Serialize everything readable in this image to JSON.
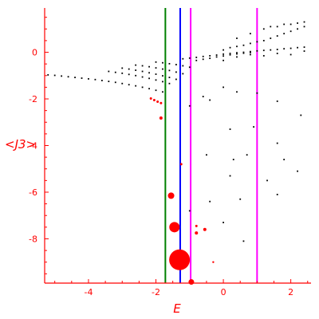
{
  "chart_data": {
    "type": "scatter",
    "title": "",
    "xlabel": "E",
    "ylabel": "<J3>",
    "xlim": [
      -5.3,
      2.6
    ],
    "ylim": [
      -9.9,
      1.9
    ],
    "xticks": [
      -4,
      -2,
      0,
      2
    ],
    "yticks": [
      0,
      -2,
      -4,
      -6,
      -8
    ],
    "grid": false,
    "colors": {
      "axis": "#ff0000",
      "points": "#000000",
      "highlight": "#ff0000"
    },
    "vertical_lines": [
      {
        "x": -1.72,
        "color": "#008000"
      },
      {
        "x": -1.28,
        "color": "#0000ff"
      },
      {
        "x": -0.97,
        "color": "#ff00ff"
      },
      {
        "x": 1.0,
        "color": "#ff00ff"
      }
    ],
    "series": [
      {
        "points": [
          [
            -5.2,
            -0.97
          ],
          [
            -5.0,
            -0.99
          ],
          [
            -4.8,
            -1.02
          ],
          [
            -4.6,
            -1.05
          ],
          [
            -4.4,
            -1.08
          ],
          [
            -4.2,
            -1.11
          ],
          [
            -4.0,
            -1.14
          ],
          [
            -3.8,
            -1.17
          ],
          [
            -3.6,
            -1.21
          ],
          [
            -3.4,
            -1.25
          ],
          [
            -3.2,
            -1.29
          ],
          [
            -3.0,
            -1.34
          ],
          [
            -2.8,
            -1.39
          ],
          [
            -2.6,
            -1.44
          ],
          [
            -2.4,
            -1.5
          ],
          [
            -2.2,
            -1.56
          ],
          [
            -2.0,
            -1.63
          ],
          [
            -1.8,
            -1.7
          ],
          [
            -3.4,
            -0.82
          ],
          [
            -3.2,
            -0.86
          ],
          [
            -3.0,
            -0.9
          ],
          [
            -2.8,
            -0.95
          ],
          [
            -2.6,
            -1.0
          ],
          [
            -2.4,
            -1.06
          ],
          [
            -2.2,
            -1.12
          ],
          [
            -2.0,
            -1.19
          ],
          [
            -1.8,
            -1.26
          ],
          [
            -1.6,
            -1.34
          ],
          [
            -3.0,
            -0.68
          ],
          [
            -2.8,
            -0.72
          ],
          [
            -2.6,
            -0.77
          ],
          [
            -2.4,
            -0.82
          ],
          [
            -2.2,
            -0.88
          ],
          [
            -2.0,
            -0.94
          ],
          [
            -1.8,
            -1.01
          ],
          [
            -1.6,
            -1.08
          ],
          [
            -1.4,
            -1.16
          ],
          [
            -2.6,
            -0.55
          ],
          [
            -2.4,
            -0.58
          ],
          [
            -2.2,
            -0.62
          ],
          [
            -2.0,
            -0.67
          ],
          [
            -1.8,
            -0.72
          ],
          [
            -1.6,
            -0.78
          ],
          [
            -1.4,
            -0.85
          ],
          [
            -1.2,
            -0.92
          ],
          [
            -2.0,
            -0.42
          ],
          [
            -1.8,
            -0.45
          ],
          [
            -1.6,
            -0.49
          ],
          [
            -1.4,
            -0.53
          ],
          [
            -1.2,
            -0.58
          ],
          [
            -1.0,
            -0.64
          ],
          [
            -1.2,
            -0.28
          ],
          [
            -1.0,
            -0.25
          ],
          [
            -0.8,
            -0.22
          ],
          [
            -0.6,
            -0.18
          ],
          [
            -0.4,
            -0.15
          ],
          [
            -0.2,
            -0.12
          ],
          [
            0.0,
            -0.08
          ],
          [
            0.2,
            -0.05
          ],
          [
            0.4,
            -0.02
          ],
          [
            0.6,
            0.0
          ],
          [
            0.8,
            0.03
          ],
          [
            1.0,
            0.06
          ],
          [
            1.2,
            0.08
          ],
          [
            1.4,
            0.1
          ],
          [
            1.6,
            0.12
          ],
          [
            1.8,
            0.15
          ],
          [
            2.0,
            0.17
          ],
          [
            2.2,
            0.2
          ],
          [
            2.4,
            0.22
          ],
          [
            -0.8,
            -0.35
          ],
          [
            -0.6,
            -0.3
          ],
          [
            -0.4,
            -0.26
          ],
          [
            -0.2,
            -0.2
          ],
          [
            0.0,
            -0.16
          ],
          [
            0.2,
            -0.11
          ],
          [
            0.4,
            -0.07
          ],
          [
            0.6,
            -0.04
          ],
          [
            0.8,
            -0.01
          ],
          [
            0.0,
            0.1
          ],
          [
            0.2,
            0.2
          ],
          [
            0.4,
            0.25
          ],
          [
            0.6,
            0.3
          ],
          [
            0.8,
            0.38
          ],
          [
            1.0,
            0.45
          ],
          [
            1.2,
            0.5
          ],
          [
            1.4,
            0.6
          ],
          [
            1.6,
            0.7
          ],
          [
            1.8,
            0.8
          ],
          [
            2.0,
            0.9
          ],
          [
            2.2,
            1.0
          ],
          [
            2.4,
            1.1
          ],
          [
            0.4,
            0.6
          ],
          [
            0.8,
            0.8
          ],
          [
            1.2,
            1.0
          ],
          [
            1.6,
            1.1
          ],
          [
            2.0,
            1.2
          ],
          [
            2.4,
            1.3
          ],
          [
            1.4,
            1.1
          ],
          [
            1.8,
            1.2
          ],
          [
            2.2,
            1.25
          ],
          [
            0.0,
            -0.35
          ],
          [
            0.4,
            -0.2
          ],
          [
            0.8,
            -0.1
          ],
          [
            1.2,
            -0.15
          ],
          [
            1.6,
            -0.05
          ],
          [
            2.0,
            -0.1
          ],
          [
            2.4,
            0.05
          ],
          [
            -0.4,
            -2.05
          ],
          [
            -0.6,
            -1.9
          ],
          [
            0.0,
            -1.5
          ],
          [
            0.4,
            -1.7
          ],
          [
            1.0,
            -1.75
          ],
          [
            1.6,
            -2.1
          ],
          [
            2.3,
            -2.7
          ],
          [
            -1.0,
            -2.3
          ],
          [
            0.2,
            -3.3
          ],
          [
            0.9,
            -3.2
          ],
          [
            1.6,
            -3.9
          ],
          [
            0.7,
            -4.4
          ],
          [
            1.8,
            -4.6
          ],
          [
            0.2,
            -5.3
          ],
          [
            -0.5,
            -4.4
          ],
          [
            0.3,
            -4.6
          ],
          [
            1.3,
            -5.5
          ],
          [
            2.2,
            -5.1
          ],
          [
            1.6,
            -6.1
          ],
          [
            0.5,
            -6.3
          ],
          [
            -0.4,
            -6.4
          ],
          [
            0.0,
            -7.3
          ],
          [
            0.6,
            -8.1
          ],
          [
            -1.0,
            -6.8
          ]
        ]
      },
      {
        "points": [
          [
            -2.05,
            -2.05
          ],
          [
            -1.95,
            -2.12
          ],
          [
            -1.85,
            -2.18
          ],
          [
            -2.15,
            -1.98
          ],
          [
            -1.85,
            -2.82
          ],
          [
            -1.55,
            -6.15
          ],
          [
            -1.45,
            -7.5
          ],
          [
            -1.3,
            -8.9
          ],
          [
            -1.25,
            -4.8
          ],
          [
            -0.8,
            -7.45
          ],
          [
            -0.8,
            -7.75
          ],
          [
            -0.55,
            -7.6
          ],
          [
            -0.95,
            -9.85
          ],
          [
            -0.3,
            -9.0
          ]
        ],
        "sizes": [
          1.5,
          1.5,
          1.5,
          1.5,
          2,
          4,
          6.5,
          13,
          1.5,
          1.5,
          2,
          2,
          3.5,
          1.2
        ]
      }
    ]
  }
}
